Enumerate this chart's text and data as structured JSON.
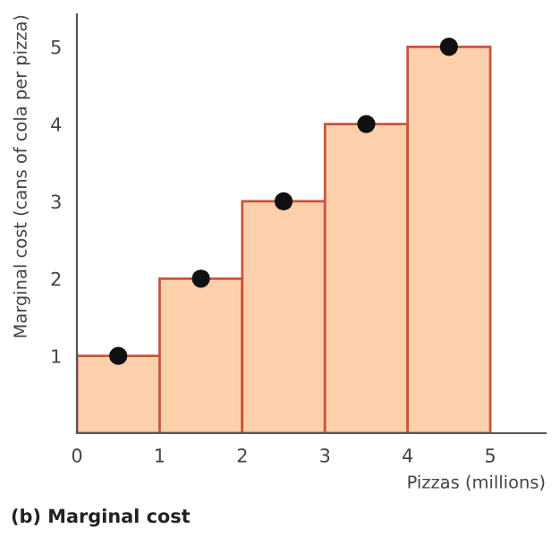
{
  "chart_data": {
    "type": "histogram",
    "title": "(b) Marginal cost",
    "xlabel": "Pizzas (millions)",
    "ylabel": "Marginal cost (cans of cola per pizza)",
    "series": [
      {
        "bins": [
          0,
          1,
          2,
          3,
          4,
          5
        ],
        "values": [
          1,
          2,
          3,
          4,
          5
        ],
        "color": "#fdd0ac"
      },
      {
        "type": "scatter",
        "x": [
          0.5,
          1.5,
          2.5,
          3.5,
          4.5
        ],
        "values": [
          1,
          2,
          3,
          4,
          5
        ],
        "color": "#111111",
        "marker": "circle"
      }
    ],
    "xlim": [
      0,
      5.67
    ],
    "ylim": [
      0,
      5.42
    ],
    "xticks": [
      0,
      1,
      2,
      3,
      4,
      5
    ],
    "yticks": [
      1,
      2,
      3,
      4,
      5
    ],
    "grid": false,
    "legend": false
  }
}
